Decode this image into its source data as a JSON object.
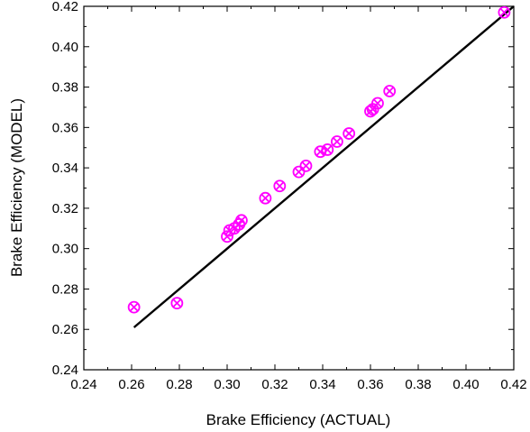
{
  "chart_data": {
    "type": "scatter",
    "title": "",
    "xlabel": "Brake Efficiency (ACTUAL)",
    "ylabel": "Brake Efficiency (MODEL)",
    "xlim": [
      0.24,
      0.42
    ],
    "ylim": [
      0.24,
      0.42
    ],
    "x_ticks": [
      "0.24",
      "0.26",
      "0.28",
      "0.30",
      "0.32",
      "0.34",
      "0.36",
      "0.38",
      "0.40",
      "0.42"
    ],
    "y_ticks": [
      "0.24",
      "0.26",
      "0.28",
      "0.30",
      "0.32",
      "0.34",
      "0.36",
      "0.38",
      "0.40",
      "0.42"
    ],
    "grid": false,
    "legend": "none",
    "marker": "circled-x",
    "marker_color": "#ff00ff",
    "line_color": "#000000",
    "reference_line": {
      "x": [
        0.261,
        0.42
      ],
      "y": [
        0.261,
        0.42
      ]
    },
    "points": [
      {
        "x": 0.261,
        "y": 0.271
      },
      {
        "x": 0.279,
        "y": 0.273
      },
      {
        "x": 0.3,
        "y": 0.306
      },
      {
        "x": 0.301,
        "y": 0.309
      },
      {
        "x": 0.303,
        "y": 0.31
      },
      {
        "x": 0.305,
        "y": 0.312
      },
      {
        "x": 0.306,
        "y": 0.314
      },
      {
        "x": 0.316,
        "y": 0.325
      },
      {
        "x": 0.322,
        "y": 0.331
      },
      {
        "x": 0.33,
        "y": 0.338
      },
      {
        "x": 0.333,
        "y": 0.341
      },
      {
        "x": 0.339,
        "y": 0.348
      },
      {
        "x": 0.342,
        "y": 0.349
      },
      {
        "x": 0.346,
        "y": 0.353
      },
      {
        "x": 0.351,
        "y": 0.357
      },
      {
        "x": 0.36,
        "y": 0.368
      },
      {
        "x": 0.361,
        "y": 0.369
      },
      {
        "x": 0.363,
        "y": 0.372
      },
      {
        "x": 0.368,
        "y": 0.378
      },
      {
        "x": 0.416,
        "y": 0.417
      }
    ]
  }
}
